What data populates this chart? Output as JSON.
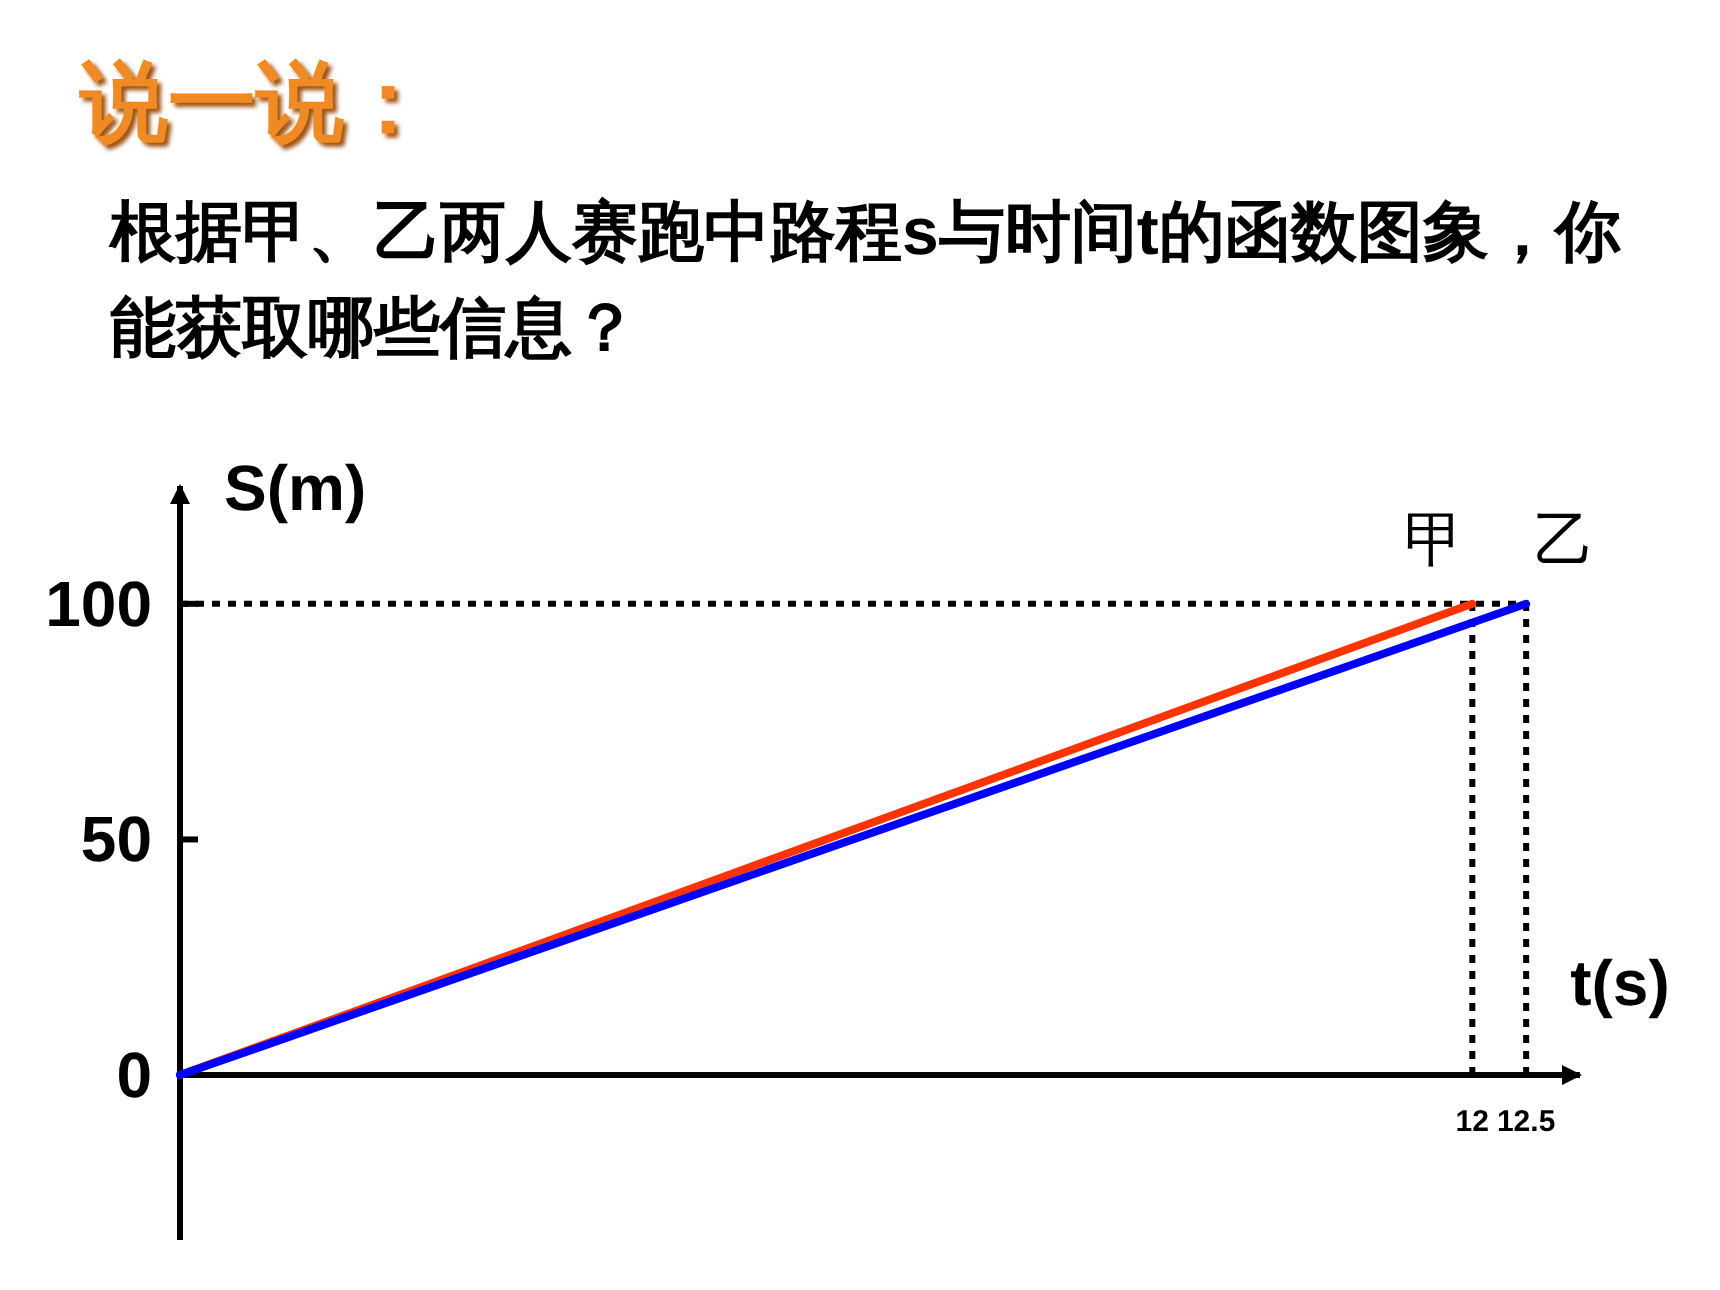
{
  "chart_data": {
    "type": "line",
    "title": "说一说：",
    "subtitle": "根据甲、乙两人赛跑中路程s与时间t的函数图象，你能获取哪些信息？",
    "xlabel": "t(s)",
    "ylabel": "S(m)",
    "xlim": [
      0,
      13
    ],
    "ylim": [
      -35,
      125
    ],
    "xticks": [
      12,
      12.5
    ],
    "yticks": [
      0,
      50,
      100
    ],
    "series": [
      {
        "name": "甲",
        "color": "#ff3300",
        "x": [
          0,
          12
        ],
        "values": [
          0,
          100
        ]
      },
      {
        "name": "乙",
        "color": "#0000ff",
        "x": [
          0,
          12.5
        ],
        "values": [
          0,
          100
        ]
      }
    ],
    "ref_lines": [
      {
        "axis": "y",
        "value": 100,
        "color": "#000000",
        "line_style": "dotted"
      },
      {
        "axis": "x",
        "value": 12,
        "color": "#000000",
        "line_style": "dotted"
      },
      {
        "axis": "x",
        "value": 12.5,
        "color": "#000000",
        "line_style": "dotted"
      }
    ]
  }
}
